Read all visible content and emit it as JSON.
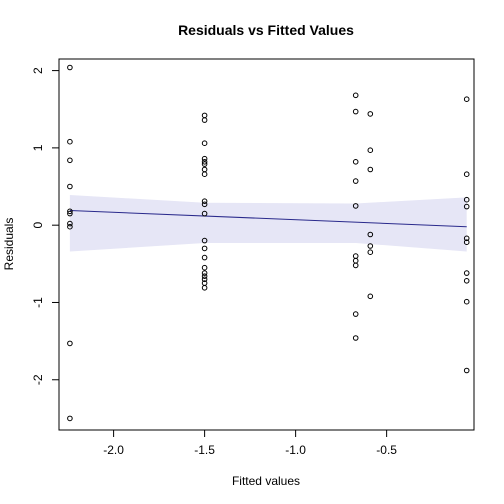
{
  "chart_data": {
    "type": "scatter",
    "title": "Residuals vs Fitted Values",
    "xlabel": "Fitted values",
    "ylabel": "Residuals",
    "xlim": [
      -2.3,
      -0.02
    ],
    "ylim": [
      -2.65,
      2.15
    ],
    "x_ticks": [
      -2.0,
      -1.5,
      -1.0,
      -0.5
    ],
    "x_tick_labels": [
      "-2.0",
      "-1.5",
      "-1.0",
      "-0.5"
    ],
    "y_ticks": [
      -2,
      -1,
      0,
      1,
      2
    ],
    "y_tick_labels": [
      "-2",
      "-1",
      "0",
      "1",
      "2"
    ],
    "grid": false,
    "points": [
      {
        "x": -2.24,
        "y": 2.04
      },
      {
        "x": -2.24,
        "y": 1.08
      },
      {
        "x": -2.24,
        "y": 0.84
      },
      {
        "x": -2.24,
        "y": 0.5
      },
      {
        "x": -2.24,
        "y": 0.18
      },
      {
        "x": -2.24,
        "y": 0.15
      },
      {
        "x": -2.24,
        "y": 0.02
      },
      {
        "x": -2.24,
        "y": -0.02
      },
      {
        "x": -2.24,
        "y": -1.53
      },
      {
        "x": -2.24,
        "y": -2.5
      },
      {
        "x": -1.5,
        "y": 1.42
      },
      {
        "x": -1.5,
        "y": 1.36
      },
      {
        "x": -1.5,
        "y": 1.06
      },
      {
        "x": -1.5,
        "y": 0.86
      },
      {
        "x": -1.5,
        "y": 0.82
      },
      {
        "x": -1.5,
        "y": 0.79
      },
      {
        "x": -1.5,
        "y": 0.72
      },
      {
        "x": -1.5,
        "y": 0.66
      },
      {
        "x": -1.5,
        "y": 0.31
      },
      {
        "x": -1.5,
        "y": 0.27
      },
      {
        "x": -1.5,
        "y": 0.15
      },
      {
        "x": -1.5,
        "y": -0.2
      },
      {
        "x": -1.5,
        "y": -0.3
      },
      {
        "x": -1.5,
        "y": -0.42
      },
      {
        "x": -1.5,
        "y": -0.55
      },
      {
        "x": -1.5,
        "y": -0.62
      },
      {
        "x": -1.5,
        "y": -0.66
      },
      {
        "x": -1.5,
        "y": -0.7
      },
      {
        "x": -1.5,
        "y": -0.75
      },
      {
        "x": -1.5,
        "y": -0.81
      },
      {
        "x": -0.67,
        "y": 1.68
      },
      {
        "x": -0.67,
        "y": 1.47
      },
      {
        "x": -0.67,
        "y": 0.82
      },
      {
        "x": -0.67,
        "y": 0.57
      },
      {
        "x": -0.67,
        "y": 0.25
      },
      {
        "x": -0.67,
        "y": -0.4
      },
      {
        "x": -0.67,
        "y": -0.46
      },
      {
        "x": -0.67,
        "y": -0.52
      },
      {
        "x": -0.67,
        "y": -1.15
      },
      {
        "x": -0.67,
        "y": -1.46
      },
      {
        "x": -0.59,
        "y": 1.44
      },
      {
        "x": -0.59,
        "y": 0.97
      },
      {
        "x": -0.59,
        "y": 0.72
      },
      {
        "x": -0.59,
        "y": -0.12
      },
      {
        "x": -0.59,
        "y": -0.27
      },
      {
        "x": -0.59,
        "y": -0.35
      },
      {
        "x": -0.59,
        "y": -0.92
      },
      {
        "x": -0.06,
        "y": 1.63
      },
      {
        "x": -0.06,
        "y": 0.66
      },
      {
        "x": -0.06,
        "y": 0.33
      },
      {
        "x": -0.06,
        "y": 0.24
      },
      {
        "x": -0.06,
        "y": -0.17
      },
      {
        "x": -0.06,
        "y": -0.22
      },
      {
        "x": -0.06,
        "y": -0.62
      },
      {
        "x": -0.06,
        "y": -0.72
      },
      {
        "x": -0.06,
        "y": -0.99
      },
      {
        "x": -0.06,
        "y": -1.88
      }
    ],
    "fit_line": {
      "x": [
        -2.24,
        -0.06
      ],
      "y": [
        0.19,
        -0.02
      ],
      "color": "#2a2a8c"
    },
    "confidence_band": {
      "x": [
        -2.24,
        -1.5,
        -0.67,
        -0.06
      ],
      "lower": [
        -0.34,
        -0.23,
        -0.23,
        -0.34
      ],
      "upper": [
        0.39,
        0.29,
        0.28,
        0.36
      ],
      "color": "#e6e6f6"
    },
    "point_color": "#000000"
  }
}
